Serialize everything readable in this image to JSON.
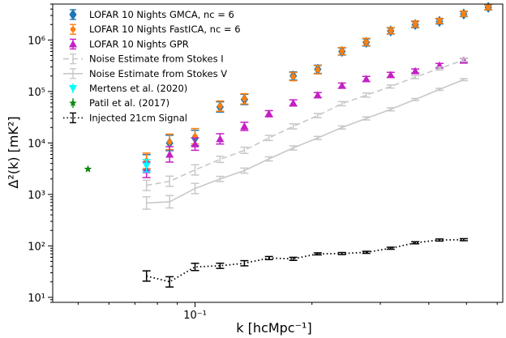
{
  "chart_data": {
    "type": "scatter",
    "xlabel": "k [hcMpc⁻¹]",
    "ylabel": "Δ²(k) [mK²]",
    "xscale": "log",
    "yscale": "log",
    "xlim": [
      0.043,
      0.62
    ],
    "ylim": [
      8,
      5000000
    ],
    "x_tick_labels": [
      "10⁻¹"
    ],
    "y_tick_labels": [
      "10¹",
      "10²",
      "10³",
      "10⁴",
      "10⁵",
      "10⁶"
    ],
    "legend_position": "top-left",
    "k": [
      0.075,
      0.086,
      0.1,
      0.116,
      0.134,
      0.155,
      0.179,
      0.207,
      0.239,
      0.276,
      0.319,
      0.369,
      0.426,
      0.492,
      0.569
    ],
    "series": [
      {
        "name": "LOFAR 10 Nights GMCA, nc = 6",
        "color": "#1f77b4",
        "marker": "diamond",
        "line": "none",
        "y": [
          4200,
          10000,
          12500,
          50000,
          70000,
          null,
          200000,
          270000,
          600000,
          900000,
          1500000,
          2000000,
          2300000,
          3200000,
          4300000
        ],
        "err": [
          0.15,
          0.15,
          0.15,
          0.1,
          0.1,
          null,
          0.08,
          0.08,
          0.07,
          0.07,
          0.06,
          0.06,
          0.05,
          0.05,
          0.05
        ]
      },
      {
        "name": "LOFAR 10 Nights FastICA, nc = 6",
        "color": "#ff7f0e",
        "marker": "circle",
        "line": "none",
        "y": [
          4500,
          10500,
          13500,
          52000,
          72000,
          null,
          195000,
          265000,
          610000,
          920000,
          1520000,
          2050000,
          2350000,
          3250000,
          4350000
        ],
        "err": [
          0.15,
          0.15,
          0.15,
          0.1,
          0.1,
          null,
          0.08,
          0.08,
          0.07,
          0.07,
          0.06,
          0.06,
          0.05,
          0.05,
          0.05
        ]
      },
      {
        "name": "LOFAR 10 Nights GPR",
        "color": "#c41fc4",
        "marker": "triangle-up",
        "line": "none",
        "y": [
          3000,
          6000,
          9500,
          12000,
          21000,
          37000,
          60000,
          85000,
          130000,
          175000,
          210000,
          250000,
          320000,
          400000,
          null
        ],
        "err": [
          0.15,
          0.15,
          0.12,
          0.1,
          0.08,
          0.06,
          0.06,
          0.05,
          0.05,
          0.05,
          0.05,
          0.04,
          0.04,
          0.04,
          null
        ]
      },
      {
        "name": "Noise Estimate from Stokes I",
        "color": "#c8c8c8",
        "marker": "none",
        "line": "dashed",
        "y": [
          1500,
          1800,
          3000,
          4800,
          7200,
          12500,
          21000,
          34000,
          58000,
          85000,
          125000,
          190000,
          280000,
          410000,
          null
        ],
        "err": [
          0.1,
          0.1,
          0.1,
          0.06,
          0.06,
          0.05,
          0.05,
          0.04,
          0.04,
          0.04,
          0.03,
          0.03,
          0.03,
          0.03,
          null
        ]
      },
      {
        "name": "Noise Estimate from Stokes V",
        "color": "#c8c8c8",
        "marker": "none",
        "line": "solid",
        "y": [
          680,
          720,
          1300,
          2000,
          2900,
          4900,
          8000,
          12500,
          20000,
          30000,
          45000,
          70000,
          110000,
          170000,
          null
        ],
        "err": [
          0.12,
          0.12,
          0.1,
          0.05,
          0.05,
          0.04,
          0.04,
          0.03,
          0.03,
          0.03,
          0.03,
          0.02,
          0.02,
          0.02,
          null
        ]
      },
      {
        "name": "Mertens et al. (2020)",
        "color": "#00ffff",
        "marker": "triangle-down",
        "line": "none",
        "points": [
          {
            "x": 0.075,
            "y": 3600,
            "err": 0.12
          }
        ]
      },
      {
        "name": "Patil et al. (2017)",
        "color": "#118811",
        "marker": "star",
        "line": "none",
        "points": [
          {
            "x": 0.053,
            "y": 3100,
            "err": 0
          }
        ]
      },
      {
        "name": "Injected 21cm Signal",
        "color": "#000000",
        "marker": "none",
        "line": "dotted",
        "y": [
          26,
          20,
          39,
          41,
          46,
          58,
          56,
          70,
          71,
          75,
          90,
          115,
          130,
          132,
          null
        ],
        "err": [
          0.1,
          0.1,
          0.07,
          0.05,
          0.05,
          0.03,
          0.03,
          0.02,
          0.02,
          0.02,
          0.02,
          0.02,
          0.02,
          0.02,
          null
        ]
      }
    ]
  }
}
